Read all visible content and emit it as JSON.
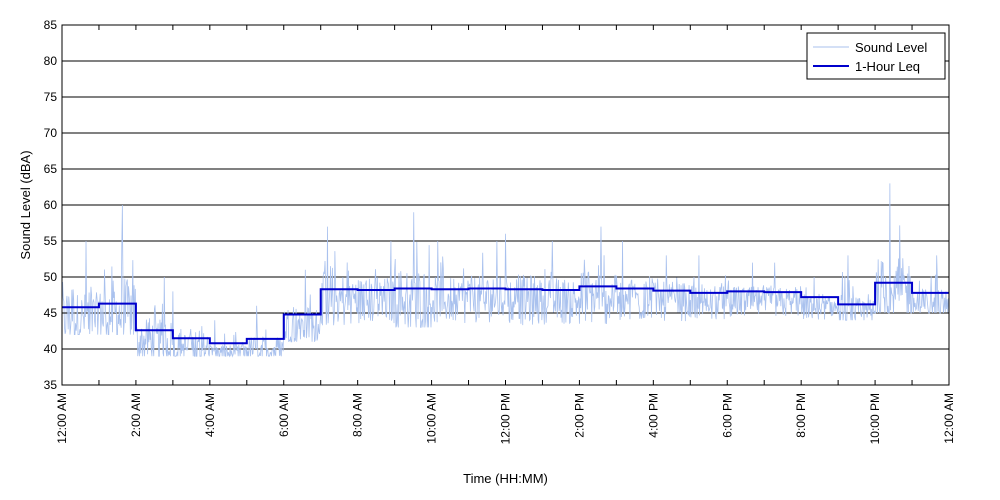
{
  "chart_data": {
    "type": "line",
    "xlabel": "Time (HH:MM)",
    "ylabel": "Sound Level (dBA)",
    "ylim": [
      35,
      85
    ],
    "yticks": [
      35,
      40,
      45,
      50,
      55,
      60,
      65,
      70,
      75,
      80,
      85
    ],
    "xlim_hours": [
      0,
      24
    ],
    "xtick_hours": [
      0,
      2,
      4,
      6,
      8,
      10,
      12,
      14,
      16,
      18,
      20,
      22,
      24
    ],
    "xtick_labels": [
      "12:00 AM",
      "2:00 AM",
      "4:00 AM",
      "6:00 AM",
      "8:00 AM",
      "10:00 AM",
      "12:00 PM",
      "2:00 PM",
      "4:00 PM",
      "6:00 PM",
      "8:00 PM",
      "10:00 PM",
      "12:00 AM"
    ],
    "grid": "horizontal",
    "legend_position": "top-right",
    "series": [
      {
        "name": "Sound Level",
        "color": "#a9c1ee",
        "style": "thin",
        "hourly_ranges": [
          [
            42,
            55
          ],
          [
            42,
            60
          ],
          [
            39,
            50
          ],
          [
            39,
            48
          ],
          [
            39,
            44
          ],
          [
            39,
            46
          ],
          [
            41,
            51
          ],
          [
            43,
            57
          ],
          [
            43,
            55
          ],
          [
            43,
            59
          ],
          [
            43,
            55
          ],
          [
            43,
            55
          ],
          [
            43,
            56
          ],
          [
            43,
            55
          ],
          [
            43,
            57
          ],
          [
            43,
            55
          ],
          [
            43,
            53
          ],
          [
            44,
            53
          ],
          [
            44,
            52
          ],
          [
            44,
            52
          ],
          [
            44,
            50
          ],
          [
            44,
            53
          ],
          [
            45,
            63
          ],
          [
            45,
            53
          ]
        ]
      },
      {
        "name": "1-Hour Leq",
        "color": "#0000cc",
        "style": "step",
        "x_hours": [
          0,
          1,
          2,
          3,
          4,
          5,
          6,
          7,
          8,
          9,
          10,
          11,
          12,
          13,
          14,
          15,
          16,
          17,
          18,
          19,
          20,
          21,
          22,
          23
        ],
        "values": [
          45.8,
          46.3,
          42.6,
          41.5,
          40.8,
          41.4,
          44.8,
          48.3,
          48.2,
          48.4,
          48.3,
          48.4,
          48.3,
          48.2,
          48.7,
          48.4,
          48.1,
          47.8,
          48.0,
          47.9,
          47.2,
          46.2,
          49.2,
          47.8
        ]
      }
    ]
  }
}
